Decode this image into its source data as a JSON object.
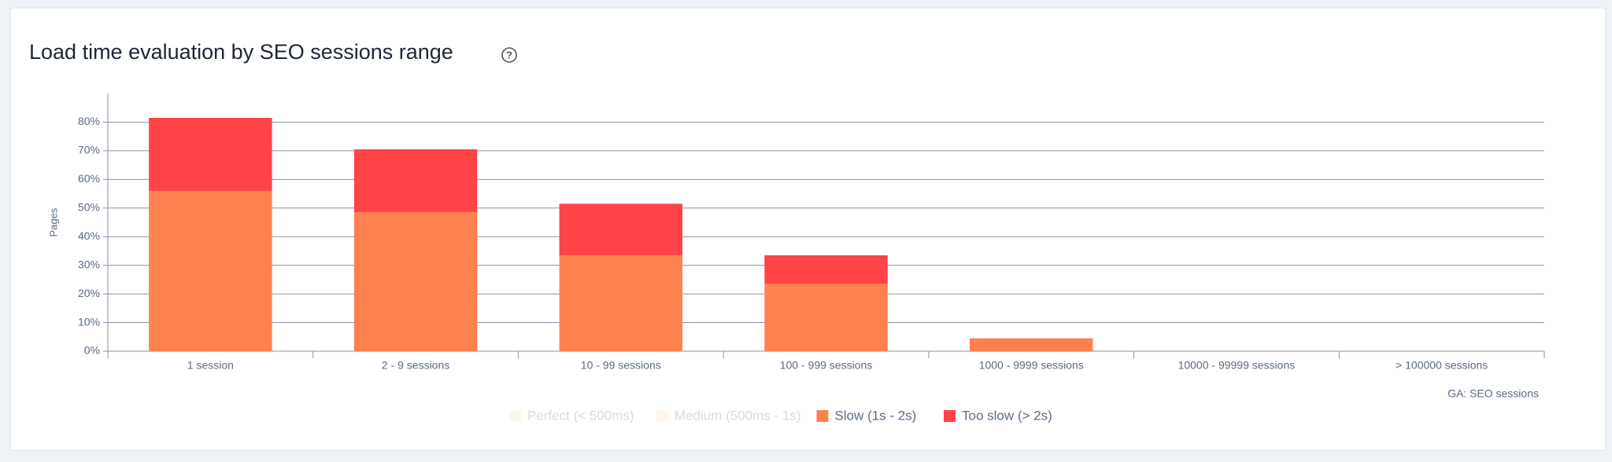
{
  "chart_data": {
    "type": "stacked_bar",
    "title": "Load time evaluation by SEO sessions range",
    "y_label": "Pages",
    "x_label": "GA: SEO sessions",
    "categories": [
      "1 session",
      "2 - 9 sessions",
      "10 - 99 sessions",
      "100 - 999 sessions",
      "1000 - 9999 sessions",
      "10000 - 99999 sessions",
      "> 100000 sessions"
    ],
    "series": [
      {
        "name": "Perfect (< 500ms)",
        "color": "#e6f0d2",
        "visible": false,
        "values": [
          null,
          null,
          null,
          null,
          null,
          null,
          null
        ]
      },
      {
        "name": "Medium (500ms - 1s)",
        "color": "#fbefc9",
        "visible": false,
        "values": [
          null,
          null,
          null,
          null,
          null,
          null,
          null
        ]
      },
      {
        "name": "Slow (1s - 2s)",
        "color": "#ff8150",
        "visible": true,
        "values": [
          56,
          48.5,
          33.5,
          23.5,
          4.5,
          0,
          0
        ]
      },
      {
        "name": "Too slow (> 2s)",
        "color": "#ff4347",
        "visible": true,
        "values": [
          25.5,
          22,
          18,
          10,
          0,
          0,
          0
        ]
      }
    ],
    "ylim": [
      0,
      90
    ],
    "yticks": [
      {
        "value": 0,
        "label": "0%"
      },
      {
        "value": 10,
        "label": "10%"
      },
      {
        "value": 20,
        "label": "20%"
      },
      {
        "value": 30,
        "label": "30%"
      },
      {
        "value": 40,
        "label": "40%"
      },
      {
        "value": 50,
        "label": "50%"
      },
      {
        "value": 60,
        "label": "60%"
      },
      {
        "value": 70,
        "label": "70%"
      },
      {
        "value": 80,
        "label": "80%"
      }
    ],
    "grid": true
  }
}
